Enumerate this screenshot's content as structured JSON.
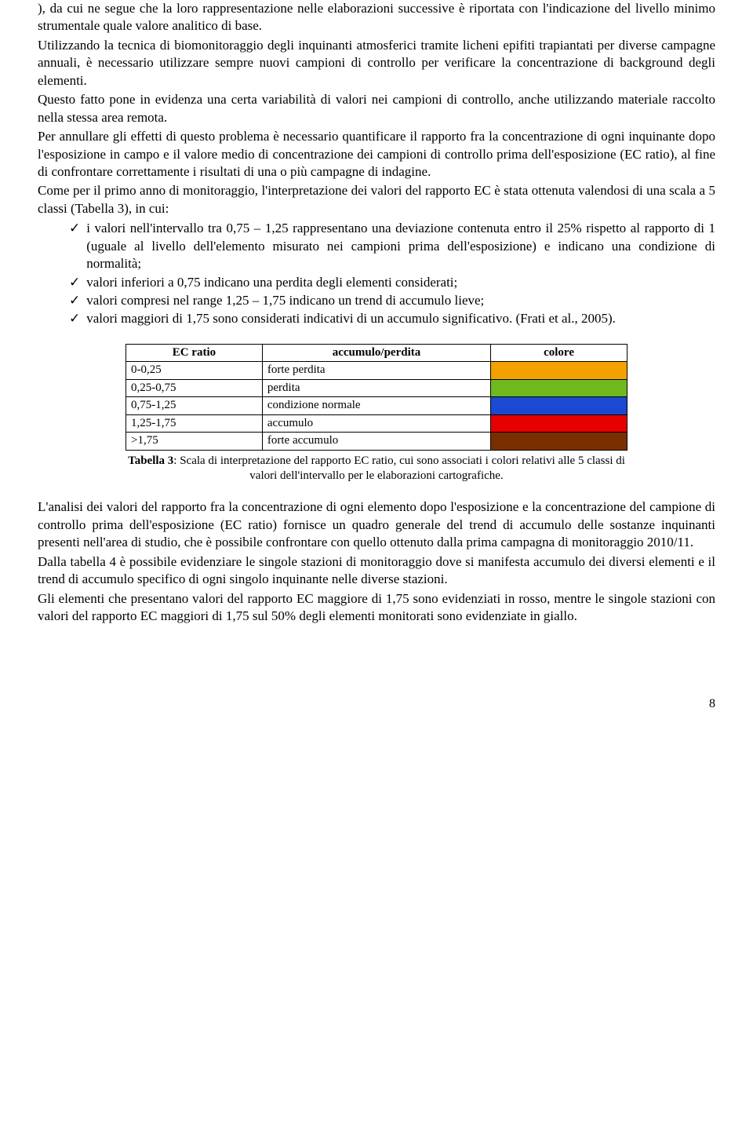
{
  "para1": "), da cui ne segue che la loro rappresentazione nelle elaborazioni successive è riportata con l'indicazione del livello minimo strumentale quale valore analitico di base.",
  "para2": "Utilizzando la tecnica di biomonitoraggio degli inquinanti atmosferici tramite licheni epifiti trapiantati per diverse campagne annuali, è necessario utilizzare sempre nuovi campioni di controllo per verificare la concentrazione di background degli elementi.",
  "para3": "Questo fatto pone in evidenza una certa variabilità di valori nei campioni di controllo, anche utilizzando materiale raccolto nella stessa area remota.",
  "para4": "Per annullare gli effetti di questo problema è necessario quantificare il rapporto fra la concentrazione di ogni inquinante dopo l'esposizione in campo e il valore medio di concentrazione dei campioni di controllo prima dell'esposizione (EC ratio), al fine di confrontare correttamente i risultati di una o più campagne di indagine.",
  "para5": "Come per il primo anno di monitoraggio, l'interpretazione dei valori del rapporto EC è stata ottenuta valendosi di una scala a 5 classi (Tabella 3), in cui:",
  "bullets": [
    "i valori nell'intervallo tra 0,75 – 1,25 rappresentano una deviazione contenuta entro il 25% rispetto al rapporto di 1 (uguale al livello dell'elemento misurato nei campioni prima dell'esposizione) e indicano una condizione di normalità;",
    "valori inferiori a 0,75 indicano una perdita degli elementi considerati;",
    "valori compresi nel range 1,25 – 1,75 indicano un trend di accumulo lieve;",
    "valori maggiori di 1,75 sono considerati indicativi di un accumulo significativo. (Frati et al., 2005)."
  ],
  "table": {
    "headers": [
      "EC ratio",
      "accumulo/perdita",
      "colore"
    ],
    "rows": [
      {
        "range": "0-0,25",
        "label": "forte perdita",
        "color": "#f2a100"
      },
      {
        "range": "0,25-0,75",
        "label": "perdita",
        "color": "#6fb91e"
      },
      {
        "range": "0,75-1,25",
        "label": "condizione normale",
        "color": "#1a4ad1"
      },
      {
        "range": "1,25-1,75",
        "label": "accumulo",
        "color": "#e60000"
      },
      {
        "range": ">1,75",
        "label": "forte accumulo",
        "color": "#7a2f00"
      }
    ],
    "caption_bold": "Tabella 3",
    "caption_rest": ": Scala di interpretazione del rapporto EC ratio, cui sono associati i colori relativi alle 5 classi di valori dell'intervallo  per le elaborazioni cartografiche."
  },
  "para6": "L'analisi dei valori del rapporto fra la concentrazione di ogni elemento dopo l'esposizione e la concentrazione del campione di controllo prima dell'esposizione (EC ratio) fornisce un quadro generale del trend di accumulo delle sostanze inquinanti presenti nell'area di studio, che è possibile confrontare con quello ottenuto dalla prima campagna di monitoraggio 2010/11.",
  "para7": "Dalla tabella 4 è possibile evidenziare le singole stazioni di monitoraggio dove si manifesta accumulo dei diversi elementi  e il trend di accumulo specifico di ogni singolo inquinante nelle diverse stazioni.",
  "para8": "Gli elementi che presentano valori del rapporto EC maggiore di 1,75 sono evidenziati in rosso, mentre le singole stazioni con valori del rapporto EC maggiori di 1,75 sul 50% degli elementi monitorati sono evidenziate in giallo.",
  "page_number": "8",
  "check_glyph": "✓",
  "col_widths": {
    "c1": "150px",
    "c2": "260px",
    "c3": "150px"
  }
}
